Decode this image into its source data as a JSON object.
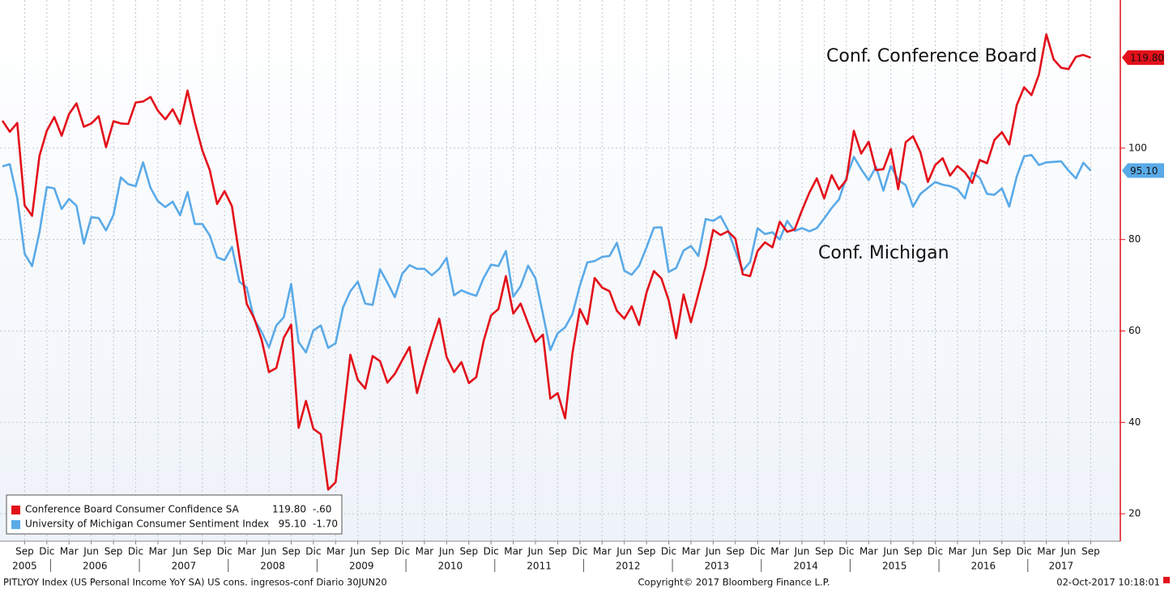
{
  "chart_data": {
    "type": "line",
    "x": [
      "2005-06",
      "2005-07",
      "2005-08",
      "2005-09",
      "2005-10",
      "2005-11",
      "2005-12",
      "2006-01",
      "2006-02",
      "2006-03",
      "2006-04",
      "2006-05",
      "2006-06",
      "2006-07",
      "2006-08",
      "2006-09",
      "2006-10",
      "2006-11",
      "2006-12",
      "2007-01",
      "2007-02",
      "2007-03",
      "2007-04",
      "2007-05",
      "2007-06",
      "2007-07",
      "2007-08",
      "2007-09",
      "2007-10",
      "2007-11",
      "2007-12",
      "2008-01",
      "2008-02",
      "2008-03",
      "2008-04",
      "2008-05",
      "2008-06",
      "2008-07",
      "2008-08",
      "2008-09",
      "2008-10",
      "2008-11",
      "2008-12",
      "2009-01",
      "2009-02",
      "2009-03",
      "2009-04",
      "2009-05",
      "2009-06",
      "2009-07",
      "2009-08",
      "2009-09",
      "2009-10",
      "2009-11",
      "2009-12",
      "2010-01",
      "2010-02",
      "2010-03",
      "2010-04",
      "2010-05",
      "2010-06",
      "2010-07",
      "2010-08",
      "2010-09",
      "2010-10",
      "2010-11",
      "2010-12",
      "2011-01",
      "2011-02",
      "2011-03",
      "2011-04",
      "2011-05",
      "2011-06",
      "2011-07",
      "2011-08",
      "2011-09",
      "2011-10",
      "2011-11",
      "2011-12",
      "2012-01",
      "2012-02",
      "2012-03",
      "2012-04",
      "2012-05",
      "2012-06",
      "2012-07",
      "2012-08",
      "2012-09",
      "2012-10",
      "2012-11",
      "2012-12",
      "2013-01",
      "2013-02",
      "2013-03",
      "2013-04",
      "2013-05",
      "2013-06",
      "2013-07",
      "2013-08",
      "2013-09",
      "2013-10",
      "2013-11",
      "2013-12",
      "2014-01",
      "2014-02",
      "2014-03",
      "2014-04",
      "2014-05",
      "2014-06",
      "2014-07",
      "2014-08",
      "2014-09",
      "2014-10",
      "2014-11",
      "2014-12",
      "2015-01",
      "2015-02",
      "2015-03",
      "2015-04",
      "2015-05",
      "2015-06",
      "2015-07",
      "2015-08",
      "2015-09",
      "2015-10",
      "2015-11",
      "2015-12",
      "2016-01",
      "2016-02",
      "2016-03",
      "2016-04",
      "2016-05",
      "2016-06",
      "2016-07",
      "2016-08",
      "2016-09",
      "2016-10",
      "2016-11",
      "2016-12",
      "2017-01",
      "2017-02",
      "2017-03",
      "2017-04",
      "2017-05",
      "2017-06",
      "2017-07",
      "2017-08",
      "2017-09"
    ],
    "series": [
      {
        "name": "Conference Board Consumer Confidence SA",
        "color": "#e3101a",
        "last_label": "119.80",
        "change": "-.60",
        "values": [
          106,
          103.6,
          105.5,
          87.5,
          85.2,
          98.3,
          103.8,
          106.8,
          102.7,
          107.5,
          109.8,
          104.7,
          105.4,
          107,
          100.2,
          105.9,
          105.4,
          105.3,
          110,
          110.2,
          111.2,
          108.2,
          106.3,
          108.5,
          105.3,
          112.6,
          105.6,
          99.5,
          95.2,
          87.8,
          90.6,
          87.3,
          76.4,
          65.9,
          62.8,
          58.1,
          51,
          51.9,
          58.5,
          61.4,
          38.8,
          44.7,
          38.6,
          37.4,
          25.3,
          26.9,
          40.8,
          54.8,
          49.3,
          47.4,
          54.5,
          53.4,
          48.7,
          50.6,
          53.6,
          56.5,
          46.4,
          52.3,
          57.7,
          62.7,
          54.3,
          51,
          53.2,
          48.6,
          49.9,
          57.8,
          63.4,
          64.8,
          72,
          63.8,
          66,
          61.7,
          57.6,
          59.2,
          45.2,
          46.4,
          40.9,
          55.2,
          64.8,
          61.5,
          71.6,
          69.5,
          68.7,
          64.4,
          62.7,
          65.4,
          61.3,
          68.4,
          73.1,
          71.5,
          66.7,
          58.4,
          68,
          61.9,
          68.1,
          74.3,
          82.1,
          81,
          81.8,
          80.2,
          72.4,
          72,
          77.5,
          79.4,
          78.3,
          83.9,
          81.7,
          82.2,
          86.4,
          90.3,
          93.4,
          89,
          94.1,
          91,
          93.1,
          103.8,
          98.8,
          101.4,
          95.2,
          95.4,
          99.8,
          91,
          101.3,
          102.6,
          99.1,
          92.6,
          96.3,
          97.8,
          94,
          96.1,
          94.7,
          92.4,
          97.4,
          96.7,
          101.8,
          103.5,
          100.8,
          109.4,
          113.3,
          111.6,
          116.1,
          124.9,
          119.4,
          117.6,
          117.3,
          120,
          120.4,
          119.8
        ]
      },
      {
        "name": "University of Michigan Consumer Sentiment Index",
        "color": "#5aaae8",
        "last_label": "95.10",
        "change": "-1.70",
        "values": [
          96,
          96.5,
          89.1,
          76.9,
          74.2,
          81.6,
          91.5,
          91.2,
          86.7,
          88.9,
          87.4,
          79.1,
          84.9,
          84.7,
          82,
          85.4,
          93.6,
          92.1,
          91.7,
          96.9,
          91.3,
          88.4,
          87.1,
          88.3,
          85.3,
          90.4,
          83.4,
          83.4,
          80.9,
          76.1,
          75.5,
          78.4,
          70.8,
          69.5,
          62.6,
          59.8,
          56.4,
          61.2,
          63,
          70.3,
          57.6,
          55.3,
          60.1,
          61.2,
          56.3,
          57.3,
          65.1,
          68.7,
          70.8,
          66,
          65.7,
          73.5,
          70.6,
          67.4,
          72.5,
          74.4,
          73.6,
          73.6,
          72.2,
          73.6,
          76,
          67.8,
          68.9,
          68.2,
          67.7,
          71.6,
          74.5,
          74.2,
          77.5,
          67.5,
          69.8,
          74.3,
          71.5,
          63.7,
          55.8,
          59.5,
          60.8,
          63.7,
          69.9,
          75,
          75.3,
          76.2,
          76.4,
          79.3,
          73.2,
          72.3,
          74.3,
          78.3,
          82.6,
          82.7,
          72.9,
          73.8,
          77.6,
          78.6,
          76.4,
          84.5,
          84.1,
          85.1,
          82.1,
          77.5,
          73.2,
          75.1,
          82.5,
          81.2,
          81.6,
          80,
          84.1,
          81.9,
          82.5,
          81.8,
          82.5,
          84.6,
          86.9,
          88.8,
          93.6,
          98.1,
          95.4,
          93,
          95.9,
          90.7,
          96.1,
          93.1,
          91.9,
          87.2,
          90,
          91.3,
          92.6,
          92,
          91.7,
          91,
          89,
          94.7,
          93.5,
          90,
          89.8,
          91.2,
          87.2,
          93.8,
          98.2,
          98.5,
          96.3,
          96.9,
          97,
          97.1,
          95.1,
          93.4,
          96.8,
          95.1
        ]
      }
    ],
    "xlim": [
      "2005-06",
      "2018-01"
    ],
    "xticks": [
      {
        "value": "2005-09",
        "label": "Sep"
      },
      {
        "value": "2005-12",
        "label": "Dic"
      },
      {
        "value": "2006-03",
        "label": "Mar"
      },
      {
        "value": "2006-06",
        "label": "Jun"
      },
      {
        "value": "2006-09",
        "label": "Sep"
      },
      {
        "value": "2006-12",
        "label": "Dic"
      },
      {
        "value": "2007-03",
        "label": "Mar"
      },
      {
        "value": "2007-06",
        "label": "Jun"
      },
      {
        "value": "2007-09",
        "label": "Sep"
      },
      {
        "value": "2007-12",
        "label": "Dic"
      },
      {
        "value": "2008-03",
        "label": "Mar"
      },
      {
        "value": "2008-06",
        "label": "Jun"
      },
      {
        "value": "2008-09",
        "label": "Sep"
      },
      {
        "value": "2008-12",
        "label": "Dic"
      },
      {
        "value": "2009-03",
        "label": "Mar"
      },
      {
        "value": "2009-06",
        "label": "Jun"
      },
      {
        "value": "2009-09",
        "label": "Sep"
      },
      {
        "value": "2009-12",
        "label": "Dic"
      },
      {
        "value": "2010-03",
        "label": "Mar"
      },
      {
        "value": "2010-06",
        "label": "Jun"
      },
      {
        "value": "2010-09",
        "label": "Sep"
      },
      {
        "value": "2010-12",
        "label": "Dic"
      },
      {
        "value": "2011-03",
        "label": "Mar"
      },
      {
        "value": "2011-06",
        "label": "Jun"
      },
      {
        "value": "2011-09",
        "label": "Sep"
      },
      {
        "value": "2011-12",
        "label": "Dic"
      },
      {
        "value": "2012-03",
        "label": "Mar"
      },
      {
        "value": "2012-06",
        "label": "Jun"
      },
      {
        "value": "2012-09",
        "label": "Sep"
      },
      {
        "value": "2012-12",
        "label": "Dic"
      },
      {
        "value": "2013-03",
        "label": "Mar"
      },
      {
        "value": "2013-06",
        "label": "Jun"
      },
      {
        "value": "2013-09",
        "label": "Sep"
      },
      {
        "value": "2013-12",
        "label": "Dic"
      },
      {
        "value": "2014-03",
        "label": "Mar"
      },
      {
        "value": "2014-06",
        "label": "Jun"
      },
      {
        "value": "2014-09",
        "label": "Sep"
      },
      {
        "value": "2014-12",
        "label": "Dic"
      },
      {
        "value": "2015-03",
        "label": "Mar"
      },
      {
        "value": "2015-06",
        "label": "Jun"
      },
      {
        "value": "2015-09",
        "label": "Sep"
      },
      {
        "value": "2015-12",
        "label": "Dic"
      },
      {
        "value": "2016-03",
        "label": "Mar"
      },
      {
        "value": "2016-06",
        "label": "Jun"
      },
      {
        "value": "2016-09",
        "label": "Sep"
      },
      {
        "value": "2016-12",
        "label": "Dic"
      },
      {
        "value": "2017-03",
        "label": "Mar"
      },
      {
        "value": "2017-06",
        "label": "Jun"
      },
      {
        "value": "2017-09",
        "label": "Sep"
      }
    ],
    "year_labels": [
      "2005",
      "2006",
      "2007",
      "2008",
      "2009",
      "2010",
      "2011",
      "2012",
      "2013",
      "2014",
      "2015",
      "2016",
      "2017"
    ],
    "ylim": [
      14,
      131
    ],
    "yticks": [
      20,
      40,
      60,
      80,
      100
    ],
    "grid": true,
    "annotations": [
      {
        "text": "Conf. Conference Board",
        "color": "#e3101a"
      },
      {
        "text": "Conf. Michigan",
        "color": "#5aaae8"
      }
    ],
    "footer": {
      "left": "PITLYOY Index (US Personal Income YoY SA) US cons. ingresos-conf  Diario 30JUN20",
      "center": "Copyright© 2017 Bloomberg Finance L.P.",
      "right": "02-Oct-2017 10:18:01"
    }
  }
}
